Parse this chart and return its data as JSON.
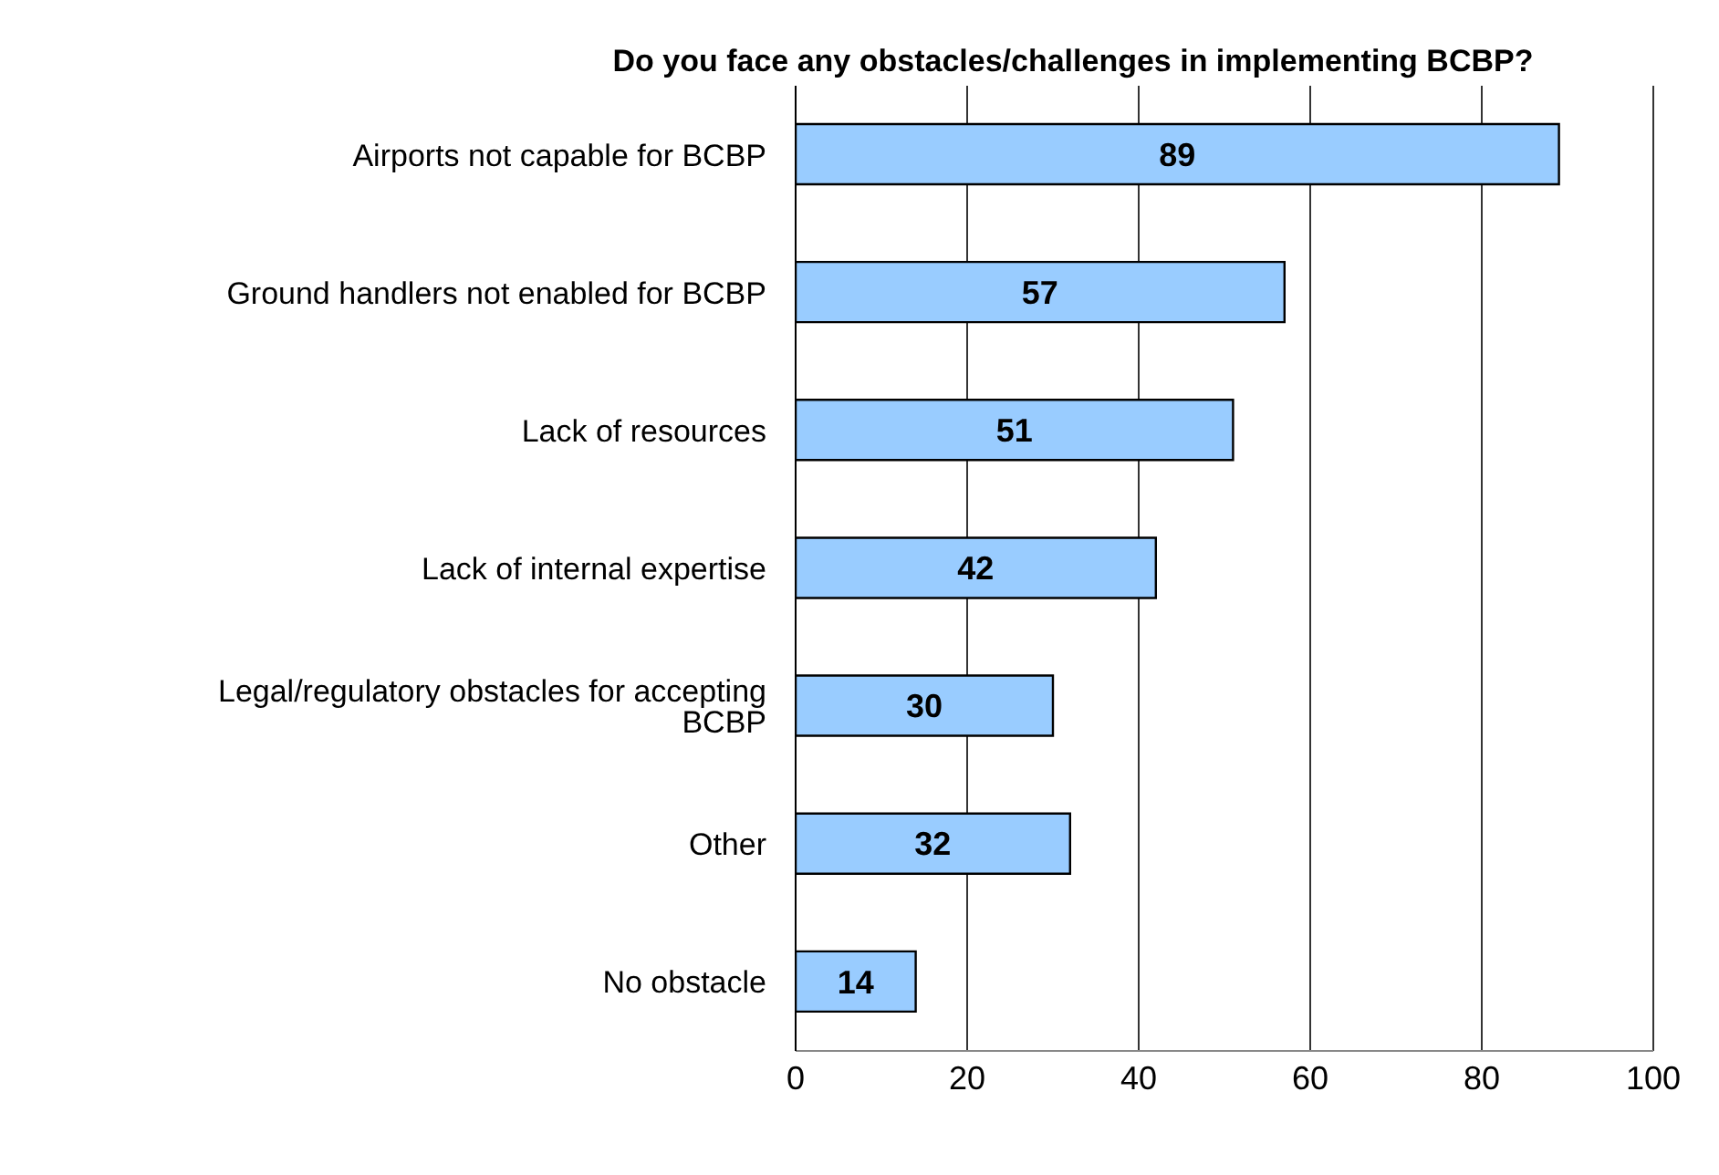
{
  "chart_data": {
    "type": "bar",
    "orientation": "horizontal",
    "title": "Do you face any obstacles/challenges in implementing BCBP?",
    "categories": [
      "Airports not capable for BCBP",
      "Ground handlers not enabled for BCBP",
      "Lack of resources",
      "Lack of internal expertise",
      "Legal/regulatory obstacles for accepting BCBP",
      "Other",
      "No obstacle"
    ],
    "values": [
      89,
      57,
      51,
      42,
      30,
      32,
      14
    ],
    "color": "#99ccff",
    "xlim": [
      0,
      100
    ],
    "xticks": [
      0,
      20,
      40,
      60,
      80,
      100
    ],
    "grid": "x",
    "data_labels": true
  }
}
